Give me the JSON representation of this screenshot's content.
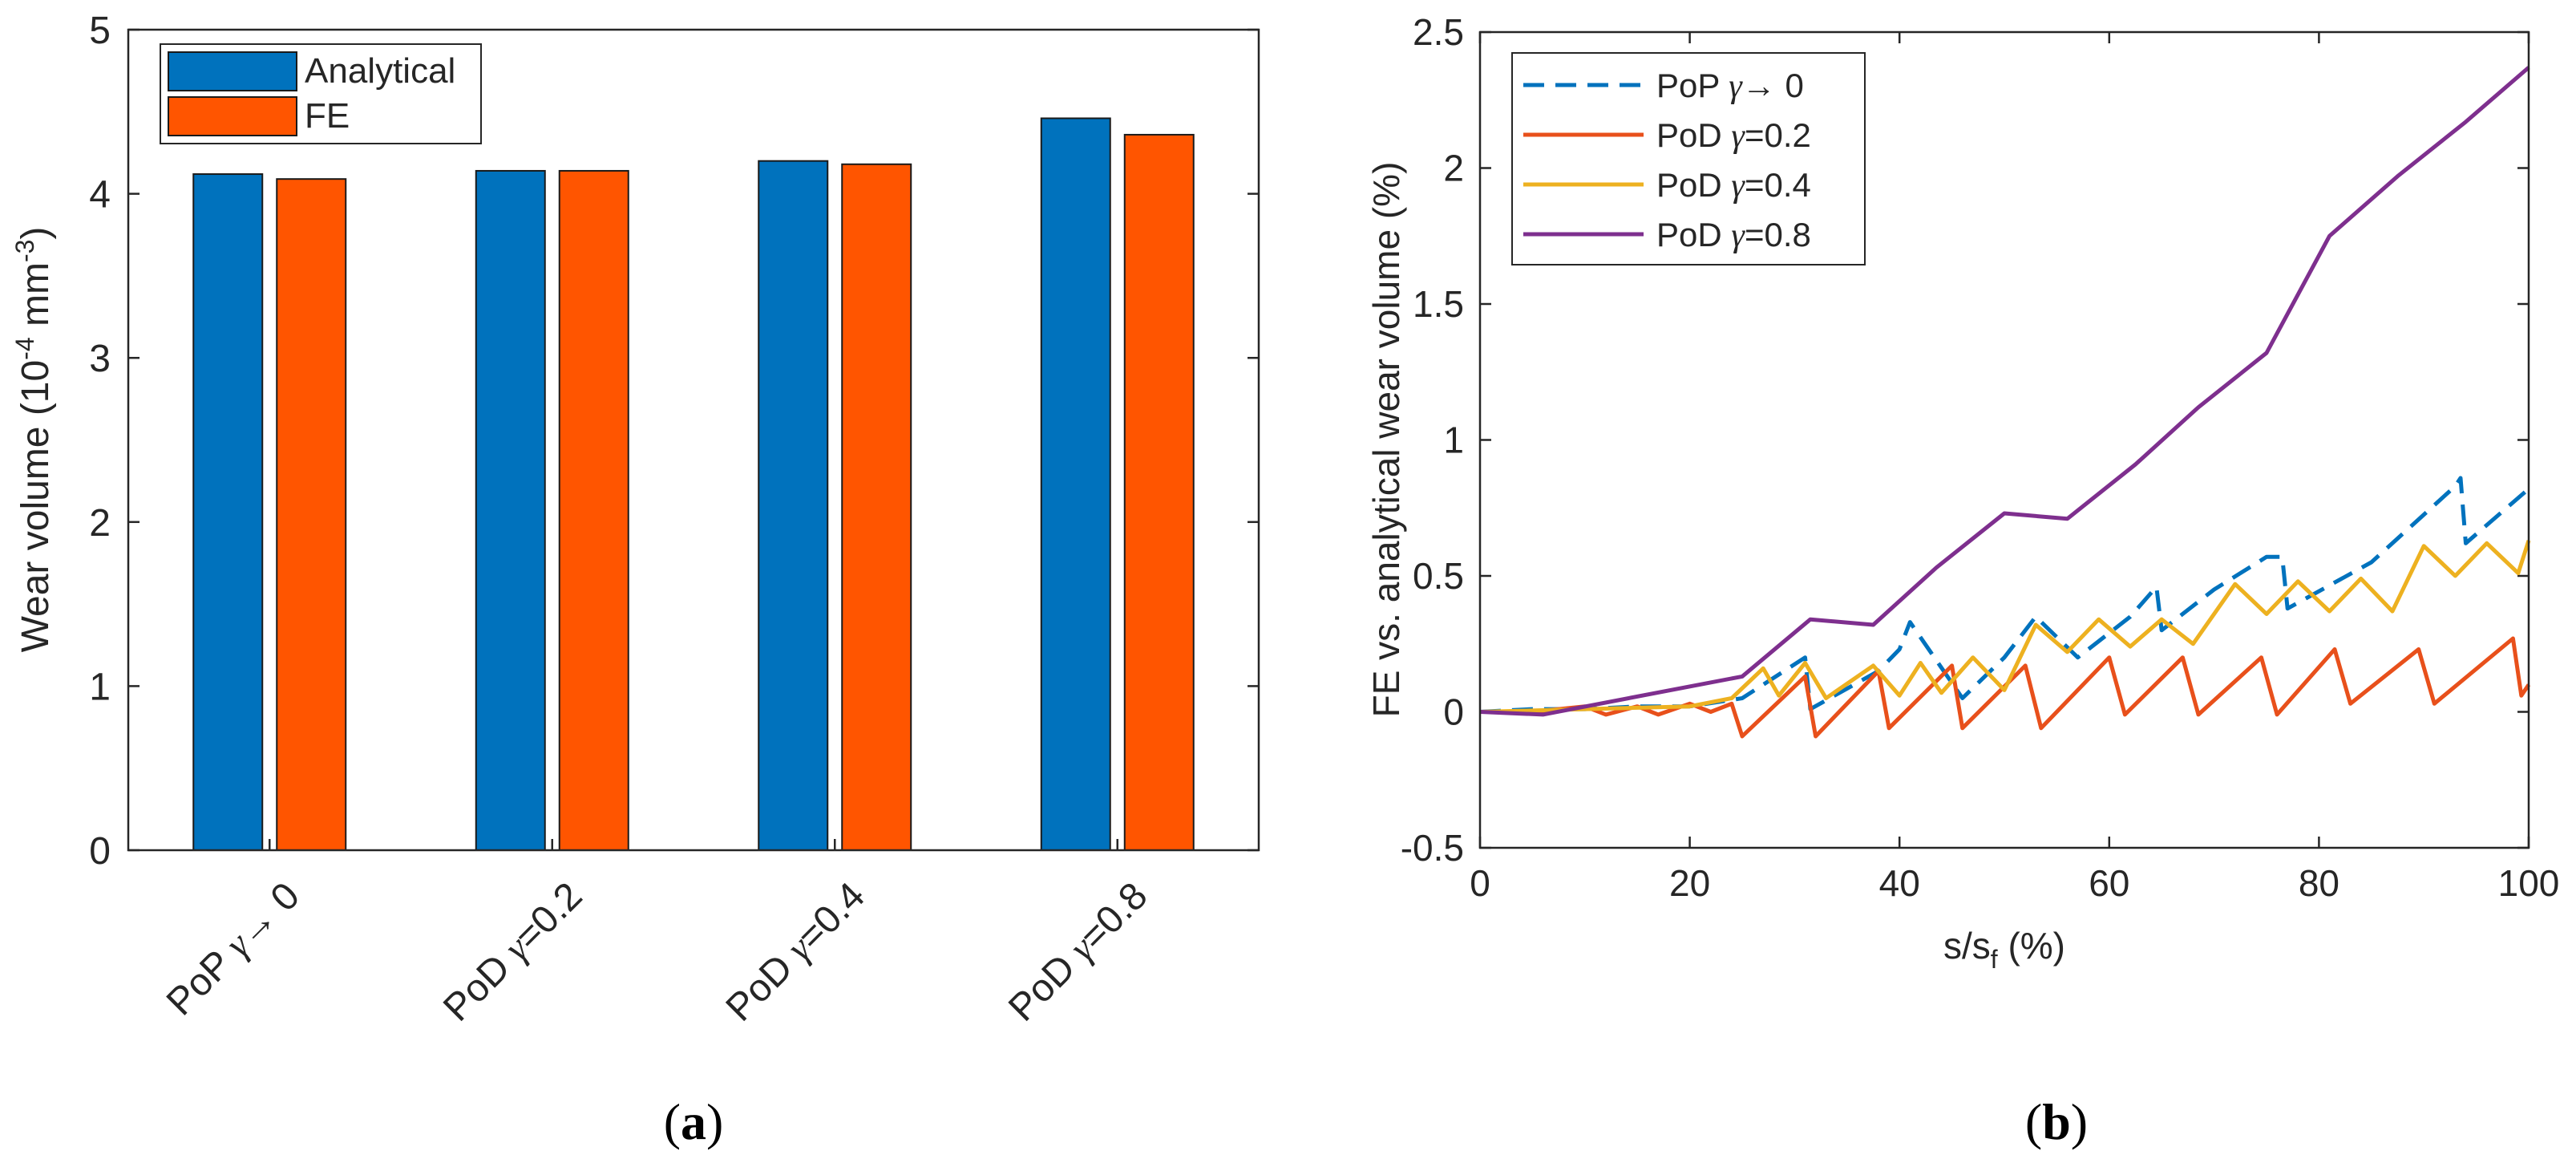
{
  "chart_data": [
    {
      "id": "a",
      "type": "bar",
      "panel_label": "a",
      "ylabel": "Wear volume (10^-4 mm^-3)",
      "ylabel_parts": {
        "main": "Wear volume  (10",
        "exp1": "-4",
        "mid": "  mm",
        "exp2": "-3",
        "end": ")"
      },
      "xlabel": "",
      "ylim": [
        0,
        5
      ],
      "yticks": [
        0,
        1,
        2,
        3,
        4,
        5
      ],
      "categories": [
        {
          "prefix": "PoP",
          "gamma": "γ",
          "suffix": "→ 0"
        },
        {
          "prefix": "PoD",
          "gamma": "γ",
          "suffix": "=0.2"
        },
        {
          "prefix": "PoD",
          "gamma": "γ",
          "suffix": "=0.4"
        },
        {
          "prefix": "PoD",
          "gamma": "γ",
          "suffix": "=0.8"
        }
      ],
      "series": [
        {
          "name": "Analytical",
          "color": "#0072BD",
          "values": [
            4.12,
            4.14,
            4.2,
            4.46
          ]
        },
        {
          "name": "FE",
          "color": "#FF5500",
          "values": [
            4.09,
            4.14,
            4.18,
            4.36
          ]
        }
      ],
      "legend_position": "top-left"
    },
    {
      "id": "b",
      "type": "line",
      "panel_label": "b",
      "xlabel": "s/s_f (%)",
      "xlabel_parts": {
        "main": "s/s",
        "sub": "f",
        "end": "  (%)"
      },
      "ylabel": "FE vs. analytical wear volume (%)",
      "xlim": [
        0,
        100
      ],
      "ylim": [
        -0.5,
        2.5
      ],
      "xticks": [
        0,
        20,
        40,
        60,
        80,
        100
      ],
      "yticks": [
        -0.5,
        0,
        0.5,
        1,
        1.5,
        2,
        2.5
      ],
      "legend_position": "top-left",
      "series": [
        {
          "name": "PoP γ → 0",
          "legend_prefix": "PoP",
          "legend_gamma": "γ",
          "legend_suffix": "→  0",
          "color": "#0072BD",
          "dash": "dashed",
          "x": [
            0,
            5,
            10,
            15,
            20,
            25,
            31,
            31.5,
            38,
            40,
            41,
            46,
            50,
            53,
            57,
            62,
            64.5,
            65,
            70,
            75,
            76.5,
            77,
            85,
            93,
            93.5,
            94,
            100
          ],
          "y": [
            0,
            0.01,
            0.01,
            0.02,
            0.02,
            0.05,
            0.2,
            0.01,
            0.15,
            0.23,
            0.33,
            0.05,
            0.2,
            0.35,
            0.2,
            0.35,
            0.46,
            0.3,
            0.45,
            0.57,
            0.57,
            0.38,
            0.55,
            0.83,
            0.86,
            0.62,
            0.82
          ]
        },
        {
          "name": "PoD γ=0.2",
          "legend_prefix": "PoD",
          "legend_gamma": "γ",
          "legend_suffix": "=0.2",
          "color": "#E8501B",
          "dash": "solid",
          "x": [
            0,
            5,
            10,
            12,
            15,
            17,
            20,
            22,
            24,
            25,
            31,
            32,
            38,
            39,
            45,
            46,
            52,
            53.5,
            60,
            61.5,
            67,
            68.5,
            74.5,
            76,
            81.5,
            83,
            89.5,
            91,
            98.5,
            99.3,
            100
          ],
          "y": [
            0,
            0,
            0.02,
            -0.01,
            0.02,
            -0.01,
            0.03,
            0.0,
            0.03,
            -0.09,
            0.13,
            -0.09,
            0.15,
            -0.06,
            0.17,
            -0.06,
            0.17,
            -0.06,
            0.2,
            -0.01,
            0.2,
            -0.01,
            0.2,
            -0.01,
            0.23,
            0.03,
            0.23,
            0.03,
            0.27,
            0.06,
            0.1
          ]
        },
        {
          "name": "PoD γ=0.4",
          "legend_prefix": "PoD",
          "legend_gamma": "γ",
          "legend_suffix": "=0.4",
          "color": "#EDB120",
          "dash": "solid",
          "x": [
            0,
            10,
            20,
            24,
            27,
            28.5,
            31,
            33,
            37.5,
            40,
            42,
            44,
            47,
            50,
            53,
            56,
            59,
            62,
            65,
            68,
            72,
            75,
            78,
            81,
            84,
            87,
            90,
            93,
            96,
            99,
            100
          ],
          "y": [
            0,
            0.01,
            0.02,
            0.05,
            0.16,
            0.06,
            0.18,
            0.05,
            0.17,
            0.06,
            0.18,
            0.07,
            0.2,
            0.08,
            0.32,
            0.22,
            0.34,
            0.24,
            0.34,
            0.25,
            0.47,
            0.36,
            0.48,
            0.37,
            0.49,
            0.37,
            0.61,
            0.5,
            0.62,
            0.51,
            0.63
          ]
        },
        {
          "name": "PoD γ=0.8",
          "legend_prefix": "PoD",
          "legend_gamma": "γ",
          "legend_suffix": "=0.8",
          "color": "#7E2F8E",
          "dash": "solid",
          "x": [
            0,
            6,
            25,
            31.5,
            37.5,
            43.5,
            50,
            56,
            62.5,
            68.5,
            75,
            81,
            87.5,
            94,
            100
          ],
          "y": [
            0,
            -0.01,
            0.13,
            0.34,
            0.32,
            0.53,
            0.73,
            0.71,
            0.91,
            1.12,
            1.32,
            1.75,
            1.97,
            2.17,
            2.37
          ]
        }
      ]
    }
  ]
}
